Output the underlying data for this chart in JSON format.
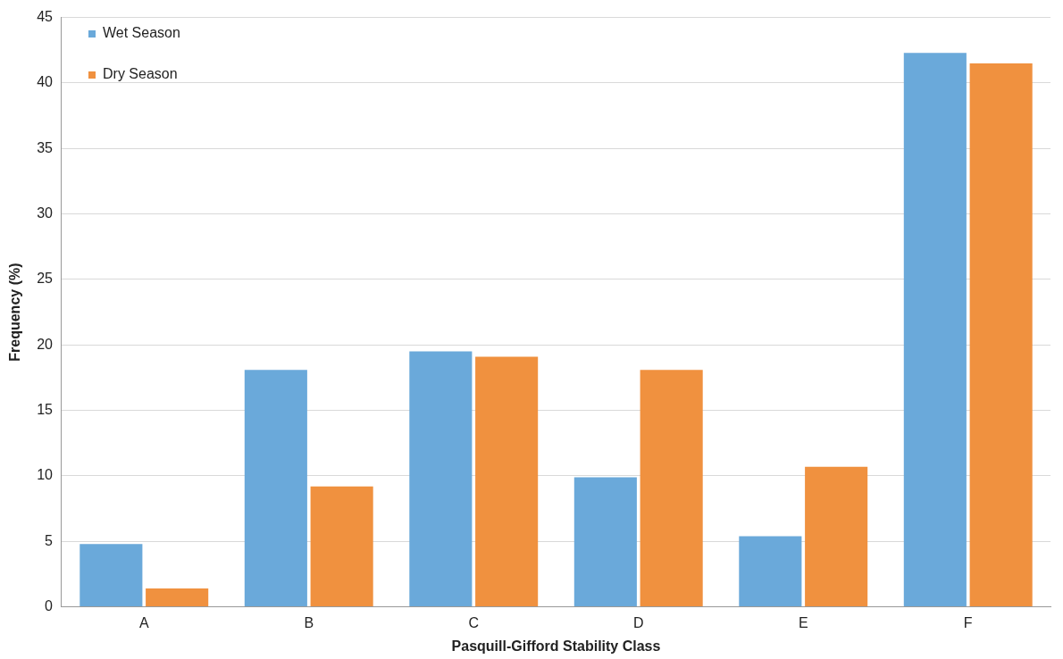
{
  "chart_data": {
    "type": "bar",
    "xlabel": "Pasquill-Gifford Stability Class",
    "ylabel": "Frequency (%)",
    "categories": [
      "A",
      "B",
      "C",
      "D",
      "E",
      "F"
    ],
    "series": [
      {
        "name": "Wet Season",
        "color": "#6aa9da",
        "values": [
          4.8,
          18.1,
          19.5,
          9.9,
          5.4,
          42.3
        ]
      },
      {
        "name": "Dry Season",
        "color": "#f0913f",
        "values": [
          1.4,
          9.2,
          19.1,
          18.1,
          10.7,
          41.5
        ]
      }
    ],
    "ylim": [
      0,
      45
    ],
    "yticks": [
      0,
      5,
      10,
      15,
      20,
      25,
      30,
      35,
      40,
      45
    ],
    "grid": "y",
    "legend": "top left"
  }
}
